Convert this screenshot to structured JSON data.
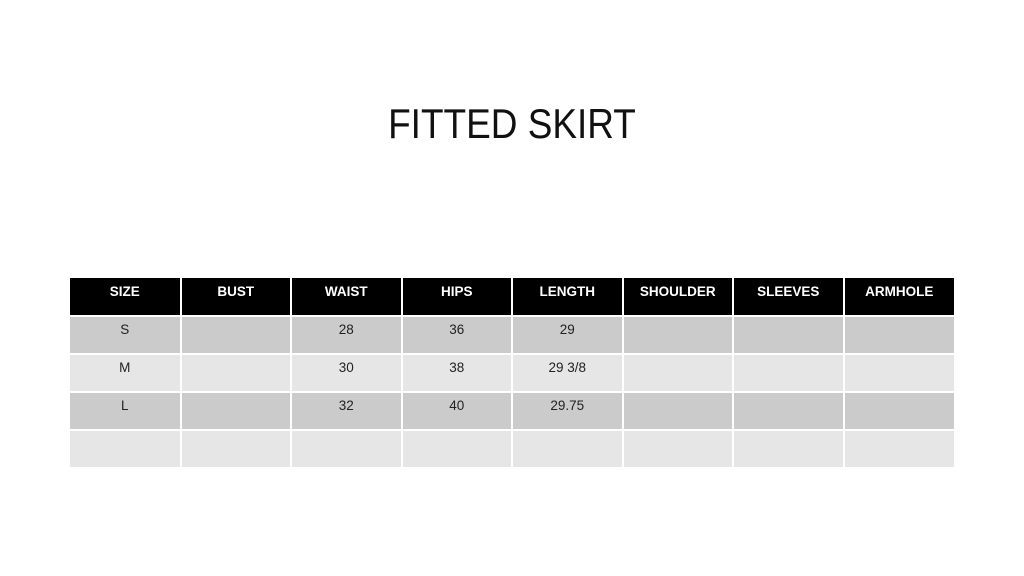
{
  "title": "FITTED SKIRT",
  "table": {
    "headers": [
      "SIZE",
      "BUST",
      "WAIST",
      "HIPS",
      "LENGTH",
      "SHOULDER",
      "SLEEVES",
      "ARMHOLE"
    ],
    "rows": [
      [
        "S",
        "",
        "28",
        "36",
        "29",
        "",
        "",
        ""
      ],
      [
        "M",
        "",
        "30",
        "38",
        "29 3/8",
        "",
        "",
        ""
      ],
      [
        "L",
        "",
        "32",
        "40",
        "29.75",
        "",
        "",
        ""
      ],
      [
        "",
        "",
        "",
        "",
        "",
        "",
        "",
        ""
      ]
    ]
  },
  "colors": {
    "header_bg": "#000000",
    "row_dark": "#cbcbcb",
    "row_light": "#e6e6e6"
  }
}
